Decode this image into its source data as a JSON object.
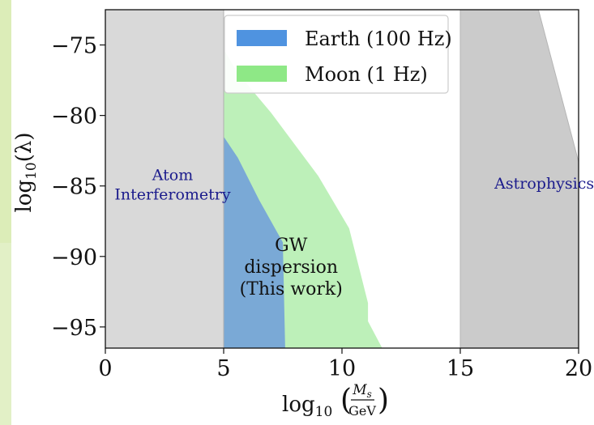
{
  "chart_data": {
    "type": "area",
    "xlabel_prefix": "log",
    "xlabel_sub": "10",
    "xlabel_num": "M",
    "xlabel_num_sub": "s",
    "xlabel_den": "GeV",
    "ylabel_prefix": "log",
    "ylabel_sub": "10",
    "ylabel_arg": "(λ)",
    "xlim": [
      0,
      20
    ],
    "ylim": [
      -96.5,
      -72.5
    ],
    "x_ticks": [
      0,
      5,
      10,
      15,
      20
    ],
    "x_tick_labels": [
      "0",
      "5",
      "10",
      "15",
      "20"
    ],
    "y_ticks": [
      -75,
      -80,
      -85,
      -90,
      -95
    ],
    "y_tick_labels": [
      "−75",
      "−80",
      "−85",
      "−90",
      "−95"
    ],
    "grid": false,
    "legend_position": "top-center",
    "colors": {
      "earth": "#7aa9d6",
      "moon": "#bdf0b9",
      "exclusion": "#d9d9d9",
      "exclusion_dark": "#cbcbcb",
      "earth_legend": "#4f93e0",
      "moon_legend": "#8ee886"
    },
    "series": [
      {
        "name": "Earth (100 Hz)",
        "polygon": [
          [
            5,
            -81.5
          ],
          [
            5.6,
            -83
          ],
          [
            6.5,
            -86
          ],
          [
            7.5,
            -89
          ],
          [
            7.6,
            -96.5
          ],
          [
            5,
            -96.5
          ]
        ]
      },
      {
        "name": "Moon (1 Hz)",
        "polygon": [
          [
            5,
            -75.3
          ],
          [
            5.6,
            -77
          ],
          [
            7,
            -79.8
          ],
          [
            9,
            -84.3
          ],
          [
            10.3,
            -88
          ],
          [
            11.1,
            -93.3
          ],
          [
            11.1,
            -94.6
          ],
          [
            11.7,
            -96.5
          ],
          [
            5,
            -96.5
          ]
        ]
      }
    ],
    "exclusion_regions": [
      {
        "label": "Atom Interferometry",
        "label_lines": [
          "Atom",
          "Interferometry"
        ],
        "polygon": [
          [
            0,
            -72.5
          ],
          [
            5,
            -72.5
          ],
          [
            5,
            -96.5
          ],
          [
            0,
            -96.5
          ]
        ]
      },
      {
        "label": "Astrophysics",
        "polygon": [
          [
            15,
            -72.5
          ],
          [
            18.3,
            -72.5
          ],
          [
            20,
            -83.3
          ],
          [
            20,
            -96.5
          ],
          [
            15,
            -96.5
          ]
        ]
      }
    ],
    "annotation_lines": [
      "GW",
      "dispersion",
      "(This work)"
    ]
  }
}
